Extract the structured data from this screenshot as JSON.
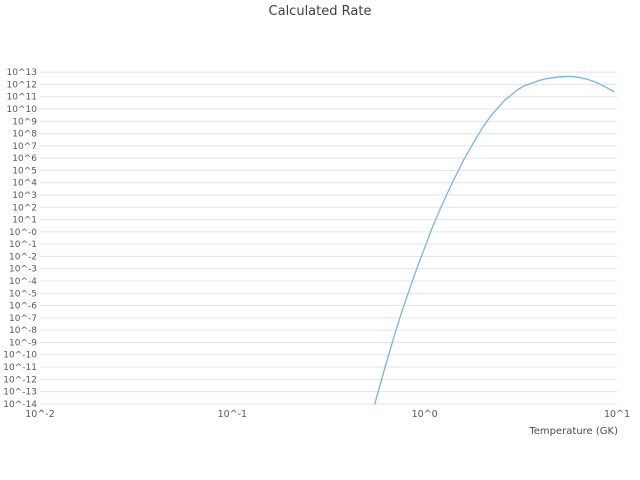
{
  "chart_data": {
    "type": "line",
    "title": "Calculated Rate",
    "xlabel": "Temperature (GK)",
    "ylabel": "",
    "x_scale": "log",
    "y_scale": "log",
    "grid": "horizontal",
    "legend": "none",
    "line_color": "#7cb2e0",
    "grid_color": "#e3e3e3",
    "xlim_log": [
      -2,
      1
    ],
    "ylim_log": [
      -14.5,
      13.5
    ],
    "x_tick_log_values": [
      -2,
      -1,
      0,
      1
    ],
    "x_tick_labels": [
      "10^-2",
      "10^-1",
      "10^0",
      "10^1"
    ],
    "y_tick_log_values": [
      13,
      12,
      11,
      10,
      9,
      8,
      7,
      6,
      5,
      4,
      3,
      2,
      1,
      0,
      -1,
      -2,
      -3,
      -4,
      -5,
      -6,
      -7,
      -8,
      -9,
      -10,
      -11,
      -12,
      -13,
      -14
    ],
    "y_tick_labels": [
      "10^13",
      "10^12",
      "10^11",
      "10^10",
      "10^9",
      "10^8",
      "10^7",
      "10^6",
      "10^5",
      "10^4",
      "10^3",
      "10^2",
      "10^1",
      "10^-0",
      "10^-1",
      "10^-2",
      "10^-3",
      "10^-4",
      "10^-5",
      "10^-6",
      "10^-7",
      "10^-8",
      "10^-9",
      "10^-10",
      "10^-11",
      "10^-12",
      "10^-13",
      "10^-14"
    ],
    "series": [
      {
        "name": "calculated-rate",
        "points_T_log10rate": [
          [
            0.55,
            -14.0
          ],
          [
            0.6,
            -11.9
          ],
          [
            0.65,
            -10.0
          ],
          [
            0.7,
            -8.3
          ],
          [
            0.75,
            -6.8
          ],
          [
            0.8,
            -5.5
          ],
          [
            0.85,
            -4.3
          ],
          [
            0.9,
            -3.2
          ],
          [
            0.95,
            -2.2
          ],
          [
            1.0,
            -1.3
          ],
          [
            1.1,
            0.4
          ],
          [
            1.2,
            1.8
          ],
          [
            1.3,
            3.0
          ],
          [
            1.4,
            4.1
          ],
          [
            1.5,
            5.0
          ],
          [
            1.6,
            5.9
          ],
          [
            1.7,
            6.6
          ],
          [
            1.8,
            7.3
          ],
          [
            1.9,
            7.9
          ],
          [
            2.0,
            8.5
          ],
          [
            2.2,
            9.4
          ],
          [
            2.4,
            10.1
          ],
          [
            2.6,
            10.7
          ],
          [
            2.8,
            11.1
          ],
          [
            3.0,
            11.5
          ],
          [
            3.3,
            11.9
          ],
          [
            3.6,
            12.1
          ],
          [
            4.0,
            12.35
          ],
          [
            4.4,
            12.5
          ],
          [
            4.8,
            12.58
          ],
          [
            5.2,
            12.63
          ],
          [
            5.6,
            12.65
          ],
          [
            6.0,
            12.63
          ],
          [
            6.5,
            12.55
          ],
          [
            7.0,
            12.42
          ],
          [
            7.5,
            12.26
          ],
          [
            8.0,
            12.08
          ],
          [
            8.5,
            11.88
          ],
          [
            9.0,
            11.68
          ],
          [
            9.6,
            11.42
          ]
        ]
      }
    ]
  }
}
